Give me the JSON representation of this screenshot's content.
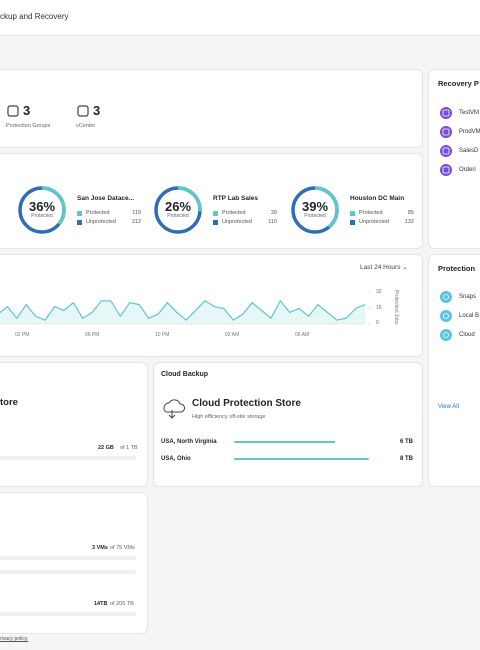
{
  "header": {
    "title": "ckup and Recovery"
  },
  "summary": [
    {
      "count": 3,
      "label": "Protection Groups"
    },
    {
      "count": 3,
      "label": "vCenter"
    }
  ],
  "sites": [
    {
      "percent": {
        "value": 36,
        "label": "36%"
      },
      "status": "Protected",
      "name": "San Jose Datace...",
      "protected_label": "Protected",
      "protected": 119,
      "unprotected_label": "Unprotected",
      "unprotected": 212
    },
    {
      "percent": {
        "value": 26,
        "label": "26%"
      },
      "status": "Protected",
      "name": "RTP Lab Sales",
      "protected_label": "Protected",
      "protected": 39,
      "unprotected_label": "Unprotected",
      "unprotected": 110
    },
    {
      "percent": {
        "value": 39,
        "label": "39%"
      },
      "status": "Protected",
      "name": "Houston DC Main",
      "protected_label": "Protected",
      "protected": 85,
      "unprotected_label": "Unprotected",
      "unprotected": 132
    }
  ],
  "jobs": {
    "range": "Last 24 Hours",
    "axis_label": "Protection Jobs",
    "x_labels": [
      "02 PM",
      "06 PM",
      "10 PM",
      "02 AM",
      "06 AM"
    ],
    "ylim": [
      0,
      32
    ],
    "yticks": [
      0,
      16,
      32
    ],
    "values": [
      10,
      18,
      6,
      20,
      8,
      4,
      18,
      14,
      22,
      6,
      12,
      24,
      24,
      8,
      22,
      20,
      6,
      10,
      22,
      12,
      4,
      14,
      24,
      18,
      16,
      4,
      10,
      22,
      14,
      6,
      24,
      12,
      16,
      8,
      20,
      12,
      4,
      6,
      16,
      20
    ],
    "color": "#5ec8c8"
  },
  "local_store": {
    "title": "tore",
    "usage": "22 GB",
    "usage_total": "of 1 TB"
  },
  "cloud": {
    "section": "Cloud Backup",
    "title": "Cloud Protection Store",
    "subtitle": "High efficiency off-site storage",
    "regions": [
      {
        "name": "USA, North Virginia",
        "value": 6,
        "label": "6 TB"
      },
      {
        "name": "USA, Ohio",
        "value": 8,
        "label": "8 TB"
      }
    ]
  },
  "capacity": {
    "vms_used": "3 VMs",
    "vms_total": "of 75 VMs",
    "storage_used": "14TB",
    "storage_total": "of 200 TB"
  },
  "footer": "rivacy policy.",
  "recovery": {
    "title": "Recovery P",
    "items": [
      "TestVM",
      "ProdVM",
      "SalesD",
      "Orderi"
    ]
  },
  "protection": {
    "title": "Protection",
    "items": [
      "Snaps",
      "Local B",
      "Cloud"
    ],
    "link": "View All"
  }
}
